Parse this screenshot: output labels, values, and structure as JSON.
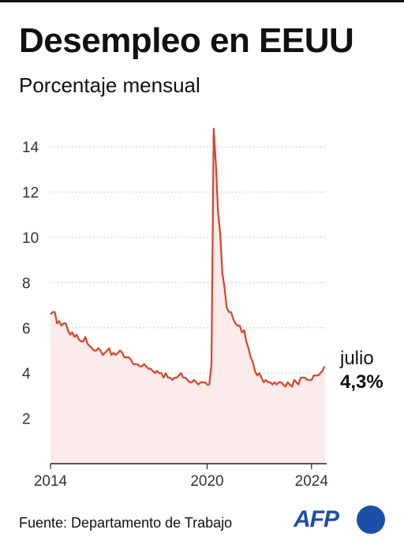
{
  "header": {
    "title": "Desempleo en EEUU",
    "subtitle": "Porcentaje mensual"
  },
  "annotation": {
    "month": "julio",
    "value": "4,3%"
  },
  "footer": {
    "source": "Fuente: Departamento de Trabajo",
    "logo_text": "AFP"
  },
  "colors": {
    "line": "#d8432b",
    "area": "#fbeceb",
    "grid": "#bbbbbb",
    "text": "#111111",
    "logo": "#1e4fa8"
  },
  "chart_data": {
    "type": "line",
    "title": "Desempleo en EEUU",
    "subtitle": "Porcentaje mensual",
    "xlabel": "",
    "ylabel": "",
    "x_start": 2014.0,
    "x_step_months": 1,
    "xlim": [
      2014.0,
      2024.58
    ],
    "ylim": [
      0,
      15.2
    ],
    "yticks": [
      "2",
      "4",
      "6",
      "8",
      "10",
      "12",
      "14"
    ],
    "xticks": [
      "2014",
      "2020",
      "2024"
    ],
    "grid": true,
    "fill_under_line": true,
    "series": [
      {
        "values": [
          6.6,
          6.7,
          6.7,
          6.2,
          6.3,
          6.1,
          6.2,
          6.2,
          5.9,
          5.7,
          5.8,
          5.6,
          5.7,
          5.5,
          5.4,
          5.4,
          5.6,
          5.3,
          5.2,
          5.1,
          5.0,
          5.0,
          5.1,
          5.0,
          4.8,
          4.9,
          5.0,
          5.1,
          4.8,
          4.9,
          4.8,
          4.9,
          5.0,
          4.9,
          4.7,
          4.7,
          4.7,
          4.6,
          4.4,
          4.4,
          4.4,
          4.3,
          4.3,
          4.4,
          4.3,
          4.2,
          4.2,
          4.1,
          4.0,
          4.1,
          4.0,
          4.0,
          3.8,
          4.0,
          3.8,
          3.8,
          3.7,
          3.8,
          3.8,
          3.9,
          4.0,
          3.8,
          3.8,
          3.7,
          3.6,
          3.6,
          3.7,
          3.6,
          3.5,
          3.6,
          3.6,
          3.6,
          3.5,
          3.5,
          4.4,
          14.8,
          13.3,
          11.1,
          10.2,
          8.4,
          7.8,
          6.9,
          6.7,
          6.7,
          6.4,
          6.2,
          6.1,
          6.1,
          5.8,
          5.9,
          5.4,
          5.1,
          4.7,
          4.5,
          4.1,
          3.9,
          4.0,
          3.8,
          3.6,
          3.7,
          3.6,
          3.6,
          3.5,
          3.6,
          3.5,
          3.6,
          3.6,
          3.5,
          3.4,
          3.6,
          3.5,
          3.4,
          3.7,
          3.6,
          3.5,
          3.8,
          3.8,
          3.8,
          3.7,
          3.7,
          3.7,
          3.9,
          3.9,
          3.9,
          4.0,
          4.1,
          4.3
        ]
      }
    ]
  }
}
